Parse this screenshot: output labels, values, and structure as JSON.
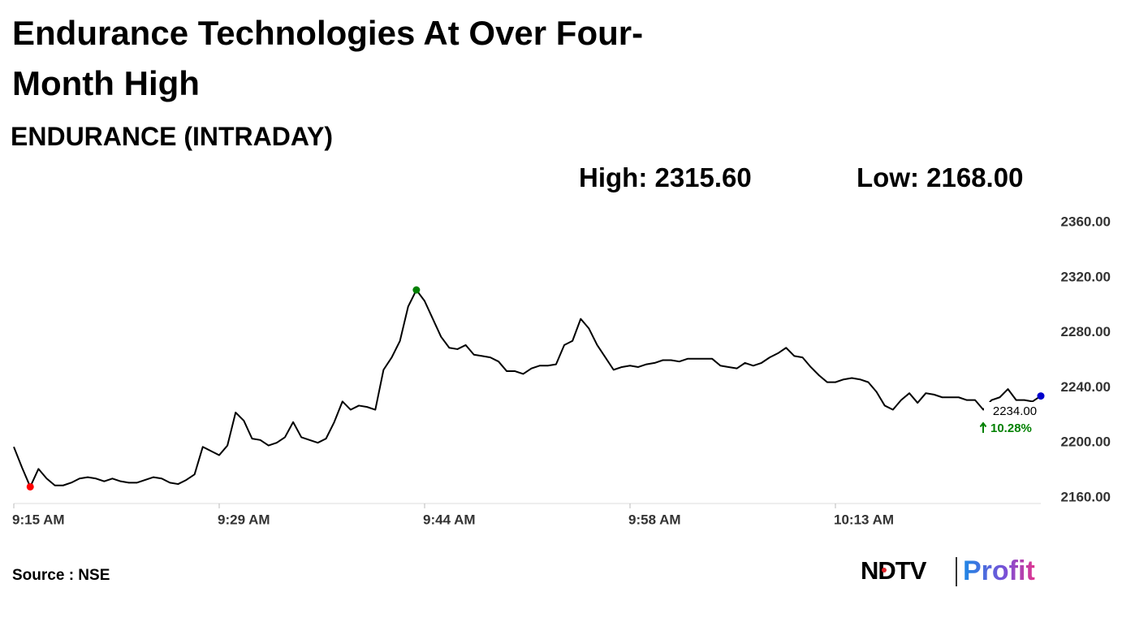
{
  "chart_data": {
    "type": "line",
    "title": "Endurance Technologies At Over Four-Month High",
    "subtitle": "ENDURANCE (INTRADAY)",
    "high": "High: 2315.60",
    "low": "Low: 2168.00",
    "last_label": "2234.00",
    "change_label": "10.28%",
    "source": "Source : NSE",
    "logo": {
      "brand": "NDTV",
      "product": "Profit"
    },
    "categories": [
      "9:15 AM",
      null,
      null,
      null,
      null,
      null,
      null,
      null,
      null,
      null,
      null,
      null,
      null,
      null,
      null,
      null,
      null,
      null,
      null,
      null,
      null,
      null,
      null,
      null,
      null,
      "9:29 AM",
      null,
      null,
      null,
      null,
      null,
      null,
      null,
      null,
      null,
      null,
      null,
      null,
      null,
      null,
      null,
      null,
      null,
      null,
      null,
      null,
      null,
      null,
      null,
      null,
      "9:44 AM",
      null,
      null,
      null,
      null,
      null,
      null,
      null,
      null,
      null,
      null,
      null,
      null,
      null,
      null,
      null,
      null,
      null,
      null,
      null,
      null,
      null,
      null,
      null,
      null,
      "9:58 AM",
      null,
      null,
      null,
      null,
      null,
      null,
      null,
      null,
      null,
      null,
      null,
      null,
      null,
      null,
      null,
      null,
      null,
      null,
      null,
      null,
      null,
      null,
      null,
      null,
      "10:13 AM",
      null,
      null,
      null,
      null,
      null,
      null,
      null,
      null,
      null,
      null,
      null,
      null,
      null,
      null,
      null,
      null,
      null,
      null,
      null,
      null,
      null,
      null,
      null,
      null,
      null
    ],
    "values": [
      2197,
      2182,
      2168,
      2181,
      2174,
      2169,
      2169,
      2171,
      2174,
      2175,
      2174,
      2172,
      2174,
      2172,
      2171,
      2171,
      2173,
      2175,
      2174,
      2171,
      2170,
      2173,
      2177,
      2197,
      2194,
      2191,
      2198,
      2222,
      2216,
      2203,
      2202,
      2198,
      2200,
      2204,
      2215,
      2204,
      2202,
      2200,
      2203,
      2215,
      2230,
      2224,
      2227,
      2226,
      2224,
      2253,
      2262,
      2274,
      2299,
      2311,
      2303,
      2290,
      2277,
      2269,
      2268,
      2271,
      2264,
      2263,
      2262,
      2259,
      2252,
      2252,
      2250,
      2254,
      2256,
      2256,
      2257,
      2271,
      2274,
      2290,
      2283,
      2271,
      2262,
      2253,
      2255,
      2256,
      2255,
      2257,
      2258,
      2260,
      2260,
      2259,
      2261,
      2261,
      2261,
      2261,
      2256,
      2255,
      2254,
      2258,
      2256,
      2258,
      2262,
      2265,
      2269,
      2263,
      2262,
      2255,
      2249,
      2244,
      2244,
      2246,
      2247,
      2246,
      2244,
      2237,
      2227,
      2224,
      2231,
      2236,
      2229,
      2236,
      2235,
      2233,
      2233,
      2233,
      2231,
      2231,
      2224,
      2231,
      2233,
      2239,
      2231,
      2231,
      2230,
      2234
    ],
    "color": "#000000",
    "high_marker_color": "#008000",
    "low_marker_color": "#ff0000",
    "last_marker_color": "#0000cc",
    "change_color": "#008000",
    "ylim": [
      2160,
      2360
    ],
    "yticks": [
      {
        "value": 2160,
        "label": "2160.00"
      },
      {
        "value": 2200,
        "label": "2200.00"
      },
      {
        "value": 2240,
        "label": "2240.00"
      },
      {
        "value": 2280,
        "label": "2280.00"
      },
      {
        "value": 2320,
        "label": "2320.00"
      },
      {
        "value": 2360,
        "label": "2360.00"
      }
    ],
    "grid": false
  }
}
